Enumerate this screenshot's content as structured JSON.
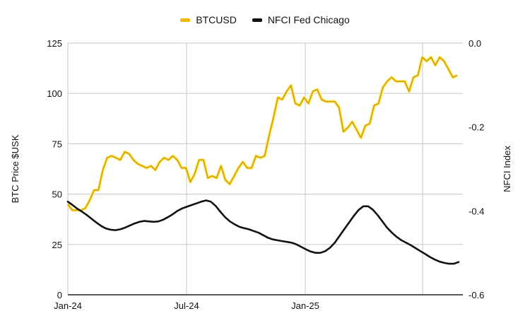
{
  "chart_data": {
    "type": "line",
    "title": "",
    "legend": {
      "position": "top",
      "entries": [
        {
          "name": "BTCUSD",
          "color": "#F2B705"
        },
        {
          "name": "NFCI Fed Chicago",
          "color": "#111111"
        }
      ]
    },
    "xlabel": "",
    "x_ticks": [
      "Jan-24",
      "Jul-24",
      "Jan-25",
      ""
    ],
    "y_left": {
      "label": "BTC Price $USK",
      "ticks": [
        0,
        25,
        50,
        75,
        100,
        125
      ],
      "range": [
        0,
        125
      ]
    },
    "y_right": {
      "label": "NFCI Index",
      "ticks": [
        "0.0",
        "-0.2",
        "-0.4",
        "-0.6"
      ],
      "range": [
        -0.6,
        0.0
      ]
    },
    "grid": true,
    "x_range": [
      "Jan-24",
      "Oct-25"
    ],
    "series": [
      {
        "name": "BTCUSD",
        "axis": "left",
        "color": "#F2B705",
        "values": [
          45,
          42,
          42,
          42,
          43,
          47,
          52,
          52,
          62,
          68,
          69,
          68,
          67,
          71,
          70,
          67,
          65,
          64,
          63,
          64,
          62,
          66,
          68,
          67,
          69,
          67,
          63,
          63,
          56,
          60,
          67,
          67,
          58,
          59,
          58,
          64,
          57,
          55,
          59,
          63,
          66,
          63,
          63,
          69,
          68,
          69,
          79,
          88,
          98,
          97,
          101,
          104,
          95,
          94,
          98,
          95,
          101,
          102,
          97,
          96,
          96,
          96,
          93,
          81,
          83,
          86,
          82,
          78,
          84,
          85,
          94,
          95,
          103,
          106,
          108,
          106,
          106,
          106,
          101,
          108,
          109,
          118,
          116,
          118,
          114,
          118,
          116,
          112,
          108,
          109
        ]
      },
      {
        "name": "NFCI Fed Chicago",
        "axis": "right",
        "color": "#111111",
        "values": [
          -0.378,
          -0.386,
          -0.395,
          -0.402,
          -0.41,
          -0.419,
          -0.428,
          -0.436,
          -0.442,
          -0.445,
          -0.446,
          -0.444,
          -0.44,
          -0.435,
          -0.43,
          -0.426,
          -0.424,
          -0.425,
          -0.426,
          -0.425,
          -0.421,
          -0.415,
          -0.408,
          -0.4,
          -0.394,
          -0.39,
          -0.386,
          -0.382,
          -0.378,
          -0.375,
          -0.378,
          -0.388,
          -0.402,
          -0.415,
          -0.425,
          -0.432,
          -0.438,
          -0.441,
          -0.444,
          -0.448,
          -0.452,
          -0.458,
          -0.464,
          -0.468,
          -0.47,
          -0.472,
          -0.474,
          -0.476,
          -0.48,
          -0.486,
          -0.492,
          -0.497,
          -0.5,
          -0.5,
          -0.496,
          -0.488,
          -0.476,
          -0.46,
          -0.444,
          -0.428,
          -0.412,
          -0.398,
          -0.389,
          -0.389,
          -0.397,
          -0.41,
          -0.425,
          -0.44,
          -0.452,
          -0.462,
          -0.47,
          -0.476,
          -0.482,
          -0.489,
          -0.496,
          -0.503,
          -0.51,
          -0.516,
          -0.521,
          -0.524,
          -0.526,
          -0.526,
          -0.522
        ]
      }
    ]
  }
}
